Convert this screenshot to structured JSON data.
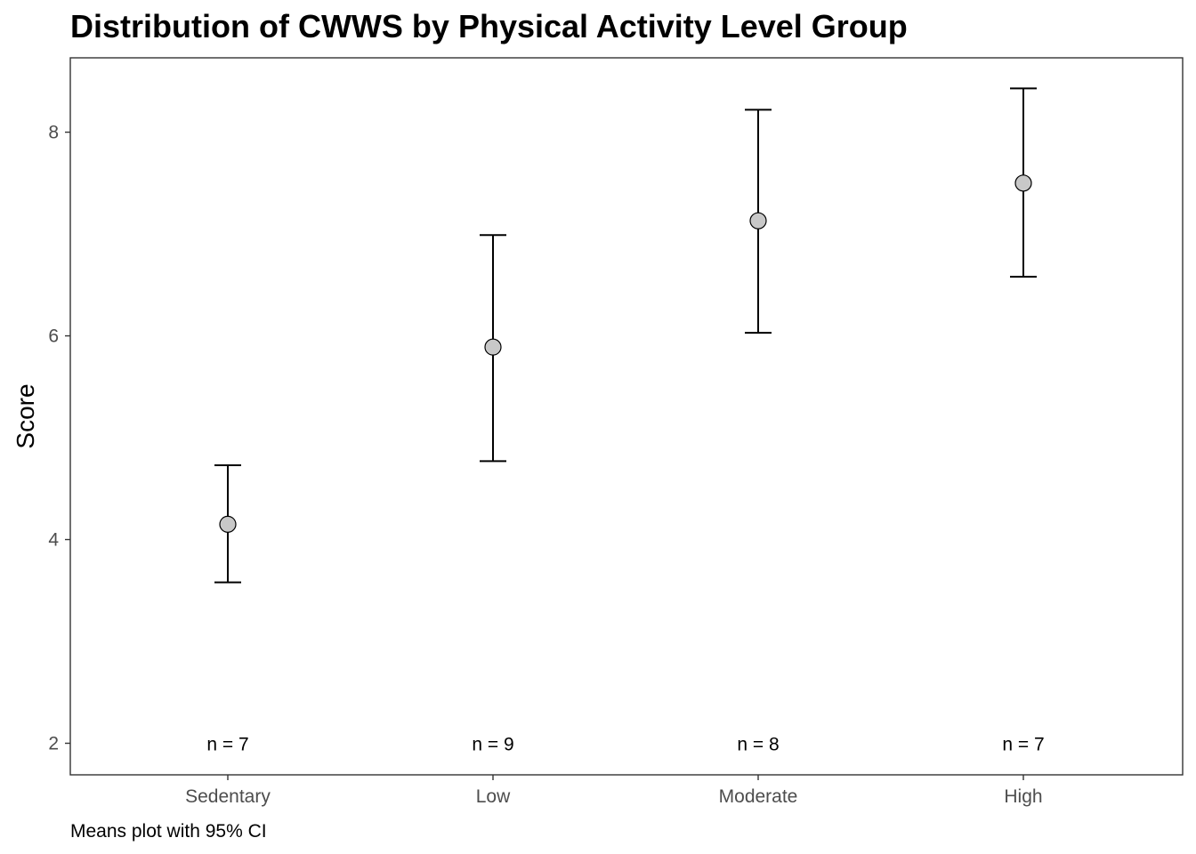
{
  "chart_data": {
    "type": "scatter",
    "title": "Distribution of CWWS by Physical Activity Level Group",
    "xlabel": "",
    "ylabel": "Score",
    "caption": "Means plot with 95% CI",
    "categories": [
      "Sedentary",
      "Low",
      "Moderate",
      "High"
    ],
    "means": [
      4.15,
      5.89,
      7.13,
      7.5
    ],
    "ci_lower": [
      3.58,
      4.77,
      6.03,
      6.58
    ],
    "ci_upper": [
      4.73,
      6.99,
      8.22,
      8.43
    ],
    "n_labels": [
      "n = 7",
      "n = 9",
      "n = 8",
      "n = 7"
    ],
    "ylim": [
      1.69,
      8.73
    ],
    "yticks": [
      2,
      4,
      6,
      8
    ],
    "ytick_labels": [
      "2",
      "4",
      "6",
      "8"
    ],
    "grid": false,
    "legend": "none",
    "colors": {
      "point_fill": "#c8c8c8",
      "point_stroke": "#000000",
      "errorbar": "#000000",
      "panel_border": "#333333",
      "tick_text": "#4d4d4d"
    }
  }
}
